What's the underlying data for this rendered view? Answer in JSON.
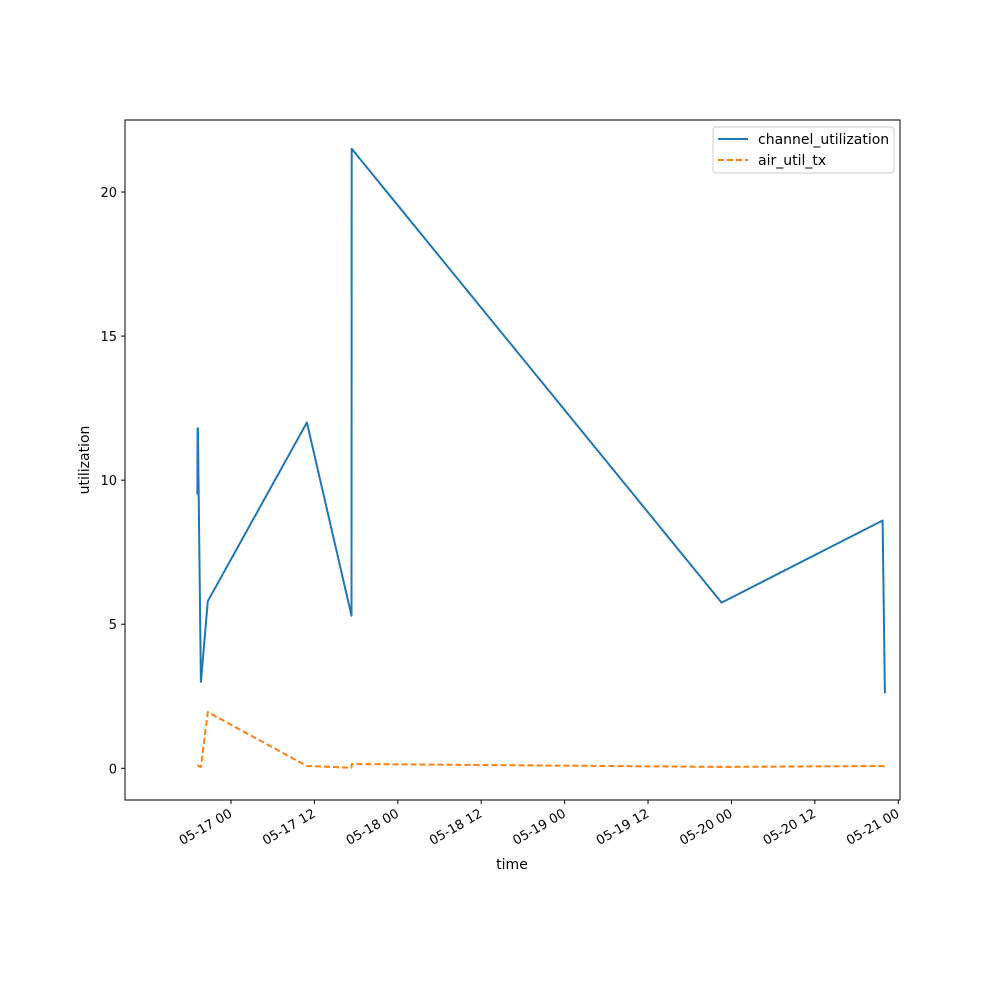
{
  "chart_data": {
    "type": "line",
    "xlabel": "time",
    "ylabel": "utilization",
    "ylim": [
      -1.1,
      22.5
    ],
    "xlim": [
      "2016-05-16 08:45",
      "2016-05-21 00:15"
    ],
    "x_ticks": [
      {
        "value": "2016-05-17 00:00",
        "label": "05-17 00"
      },
      {
        "value": "2016-05-17 12:00",
        "label": "05-17 12"
      },
      {
        "value": "2016-05-18 00:00",
        "label": "05-18 00"
      },
      {
        "value": "2016-05-18 12:00",
        "label": "05-18 12"
      },
      {
        "value": "2016-05-19 00:00",
        "label": "05-19 00"
      },
      {
        "value": "2016-05-19 12:00",
        "label": "05-19 12"
      },
      {
        "value": "2016-05-20 00:00",
        "label": "05-20 00"
      },
      {
        "value": "2016-05-20 12:00",
        "label": "05-20 12"
      },
      {
        "value": "2016-05-21 00:00",
        "label": "05-21 00"
      }
    ],
    "y_ticks": [
      0,
      5,
      10,
      15,
      20
    ],
    "legend_position": "upper right",
    "grid": false,
    "series": [
      {
        "name": "channel_utilization",
        "color": "#1f77b4",
        "dash": "solid",
        "points": [
          {
            "x": "2016-05-16 19:10",
            "y": 9.5
          },
          {
            "x": "2016-05-16 19:12",
            "y": 11.8
          },
          {
            "x": "2016-05-16 19:14",
            "y": 11.8
          },
          {
            "x": "2016-05-16 19:40",
            "y": 3.0
          },
          {
            "x": "2016-05-16 20:40",
            "y": 5.8
          },
          {
            "x": "2016-05-17 10:55",
            "y": 12.0
          },
          {
            "x": "2016-05-17 17:20",
            "y": 5.3
          },
          {
            "x": "2016-05-17 17:22",
            "y": 21.5
          },
          {
            "x": "2016-05-19 22:35",
            "y": 5.75
          },
          {
            "x": "2016-05-20 21:45",
            "y": 8.6
          },
          {
            "x": "2016-05-20 22:05",
            "y": 2.6
          }
        ]
      },
      {
        "name": "air_util_tx",
        "color": "#ff7f0e",
        "dash": "dashed",
        "points": [
          {
            "x": "2016-05-16 19:10",
            "y": 0.1
          },
          {
            "x": "2016-05-16 19:40",
            "y": 0.05
          },
          {
            "x": "2016-05-16 20:40",
            "y": 1.95
          },
          {
            "x": "2016-05-17 10:55",
            "y": 0.08
          },
          {
            "x": "2016-05-17 17:20",
            "y": 0.02
          },
          {
            "x": "2016-05-17 17:22",
            "y": 0.15
          },
          {
            "x": "2016-05-19 22:35",
            "y": 0.05
          },
          {
            "x": "2016-05-20 21:45",
            "y": 0.08
          },
          {
            "x": "2016-05-20 22:05",
            "y": 0.05
          }
        ]
      }
    ]
  }
}
